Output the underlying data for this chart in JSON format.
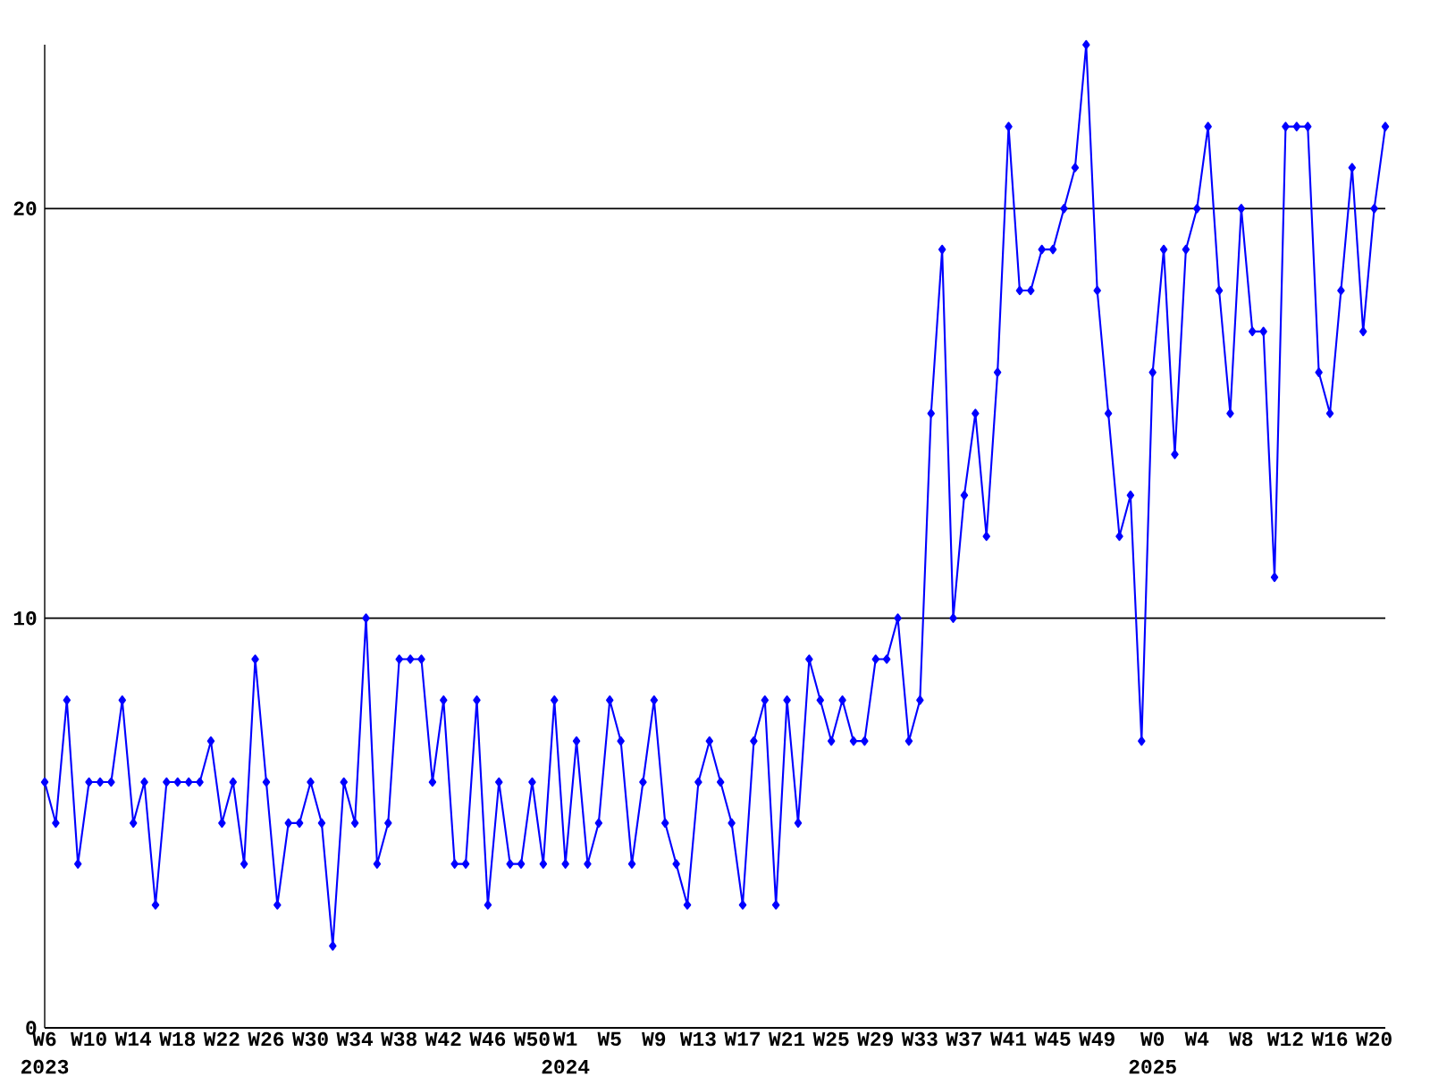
{
  "chart_data": {
    "type": "line",
    "categories": [
      "W6",
      null,
      null,
      null,
      "W10",
      null,
      null,
      null,
      "W14",
      null,
      null,
      null,
      "W18",
      null,
      null,
      null,
      "W22",
      null,
      null,
      null,
      "W26",
      null,
      null,
      null,
      "W30",
      null,
      null,
      null,
      "W34",
      null,
      null,
      null,
      "W38",
      null,
      null,
      null,
      "W42",
      null,
      null,
      null,
      "W46",
      null,
      null,
      null,
      "W50",
      null,
      null,
      "W1",
      null,
      null,
      null,
      "W5",
      null,
      null,
      null,
      "W9",
      null,
      null,
      null,
      "W13",
      null,
      null,
      null,
      "W17",
      null,
      null,
      null,
      "W21",
      null,
      null,
      null,
      "W25",
      null,
      null,
      null,
      "W29",
      null,
      null,
      null,
      "W33",
      null,
      null,
      null,
      "W37",
      null,
      null,
      null,
      "W41",
      null,
      null,
      null,
      "W45",
      null,
      null,
      null,
      "W49",
      null,
      null,
      null,
      null,
      "W0",
      null,
      null,
      null,
      "W4",
      null,
      null,
      null,
      "W8",
      null,
      null,
      null,
      "W12",
      null,
      null,
      null,
      "W16",
      null,
      null,
      null,
      "W20",
      null
    ],
    "values": [
      6,
      5,
      8,
      4,
      6,
      6,
      6,
      8,
      5,
      6,
      3,
      6,
      6,
      6,
      6,
      7,
      5,
      6,
      4,
      9,
      6,
      3,
      5,
      5,
      6,
      5,
      2,
      6,
      5,
      10,
      4,
      5,
      9,
      9,
      9,
      6,
      8,
      4,
      4,
      8,
      3,
      6,
      4,
      4,
      6,
      4,
      8,
      4,
      7,
      4,
      5,
      8,
      7,
      4,
      6,
      8,
      5,
      4,
      3,
      6,
      7,
      6,
      5,
      3,
      7,
      8,
      3,
      8,
      5,
      9,
      8,
      7,
      8,
      7,
      7,
      9,
      9,
      10,
      7,
      8,
      15,
      19,
      10,
      13,
      15,
      12,
      16,
      22,
      18,
      18,
      19,
      19,
      20,
      21,
      24,
      18,
      15,
      12,
      13,
      7,
      16,
      19,
      14,
      19,
      20,
      22,
      18,
      15,
      20,
      17,
      17,
      11,
      22,
      22,
      22,
      16,
      15,
      18,
      21,
      17,
      20,
      22
    ],
    "color": "#0000ff",
    "marker": "diamond",
    "grid": "y",
    "ylim": [
      0,
      24
    ],
    "yticks": [
      0,
      10,
      20
    ],
    "annotations": [
      "2023",
      "2024",
      "2025"
    ]
  }
}
